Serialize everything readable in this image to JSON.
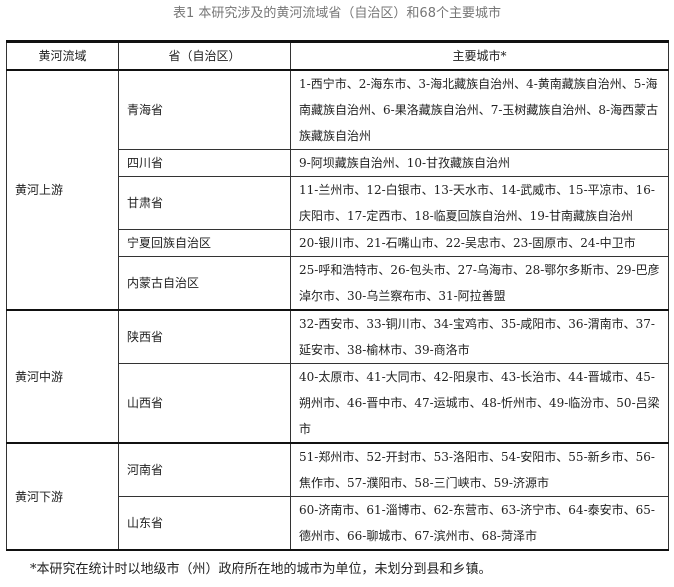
{
  "title": "表1 本研究涉及的黄河流域省（自治区）和68个主要城市",
  "headers": [
    "黄河流域",
    "省（自治区）",
    "主要城市*"
  ],
  "groups": [
    {
      "basin": "黄河上游",
      "rows": [
        {
          "province": "青海省",
          "cities": "1-西宁市、2-海东市、3-海北藏族自治州、4-黄南藏族自治州、5-海南藏族自治州、6-果洛藏族自治州、7-玉树藏族自治州、8-海西蒙古族藏族自治州"
        },
        {
          "province": "四川省",
          "cities": "9-阿坝藏族自治州、10-甘孜藏族自治州"
        },
        {
          "province": "甘肃省",
          "cities": "11-兰州市、12-白银市、13-天水市、14-武威市、15-平凉市、16-庆阳市、17-定西市、18-临夏回族自治州、19-甘南藏族自治州"
        },
        {
          "province": "宁夏回族自治区",
          "cities": "20-银川市、21-石嘴山市、22-吴忠市、23-固原市、24-中卫市"
        },
        {
          "province": "内蒙古自治区",
          "cities": "25-呼和浩特市、26-包头市、27-乌海市、28-鄂尔多斯市、29-巴彦淖尔市、30-乌兰察布市、31-阿拉善盟"
        }
      ]
    },
    {
      "basin": "黄河中游",
      "rows": [
        {
          "province": "陕西省",
          "cities": "32-西安市、33-铜川市、34-宝鸡市、35-咸阳市、36-渭南市、37-延安市、38-榆林市、39-商洛市"
        },
        {
          "province": "山西省",
          "cities": "40-太原市、41-大同市、42-阳泉市、43-长治市、44-晋城市、45-朔州市、46-晋中市、47-运城市、48-忻州市、49-临汾市、50-吕梁市"
        }
      ]
    },
    {
      "basin": "黄河下游",
      "rows": [
        {
          "province": "河南省",
          "cities": "51-郑州市、52-开封市、53-洛阳市、54-安阳市、55-新乡市、56-焦作市、57-濮阳市、58-三门峡市、59-济源市"
        },
        {
          "province": "山东省",
          "cities": "60-济南市、61-淄博市、62-东营市、63-济宁市、64-泰安市、65-德州市、66-聊城市、67-滨州市、68-菏泽市"
        }
      ]
    }
  ],
  "footnote": "*本研究在统计时以地级市（州）政府所在地的城市为单位，未划分到县和乡镇。"
}
